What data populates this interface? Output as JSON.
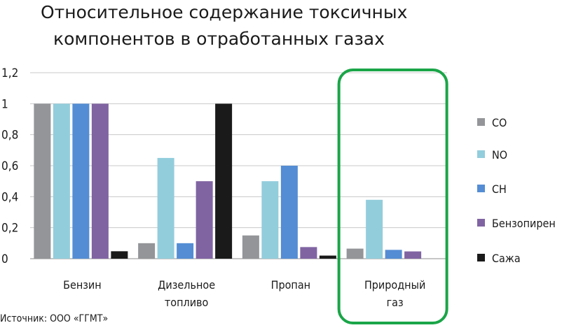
{
  "chart_data": {
    "type": "bar",
    "title_lines": [
      "Относительное содержание токсичных",
      "компонентов в отработанных газах"
    ],
    "categories": [
      [
        "Бензин"
      ],
      [
        "Дизельное",
        "топливо"
      ],
      [
        "Пропан"
      ],
      [
        "Природный",
        "газ"
      ]
    ],
    "series": [
      {
        "name": "CO",
        "color": "#939598",
        "values": [
          1.0,
          0.1,
          0.15,
          0.065
        ]
      },
      {
        "name": "NO",
        "color": "#92cddc",
        "values": [
          1.0,
          0.65,
          0.5,
          0.38
        ]
      },
      {
        "name": "CH",
        "color": "#548dd4",
        "values": [
          1.0,
          0.1,
          0.6,
          0.057
        ]
      },
      {
        "name": "Бензопирен",
        "color": "#8064a2",
        "values": [
          1.0,
          0.5,
          0.075,
          0.047
        ]
      },
      {
        "name": "Сажа",
        "color": "#1a1a1a",
        "values": [
          0.048,
          1.0,
          0.02,
          0.0
        ]
      }
    ],
    "yticks": [
      "0",
      "0,2",
      "0,4",
      "0,6",
      "0,8",
      "1",
      "1,2"
    ],
    "ytick_values": [
      0,
      0.2,
      0.4,
      0.6,
      0.8,
      1.0,
      1.2
    ],
    "ylim": [
      0,
      1.2
    ],
    "grid": true,
    "legend": "right",
    "highlight": {
      "category_index": 3,
      "color": "#1aa548"
    },
    "source": "Источник: ООО «ГГМТ»"
  }
}
